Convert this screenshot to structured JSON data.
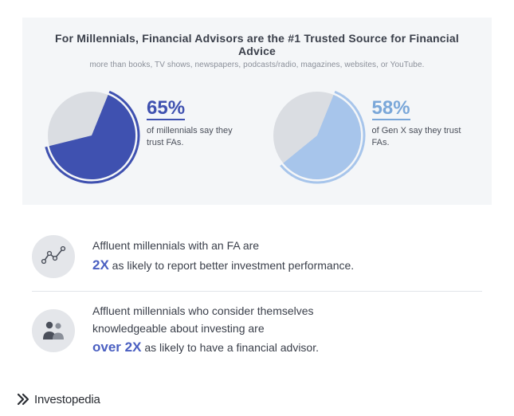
{
  "panel": {
    "title": "For Millennials, Financial Advisors are the #1 Trusted Source for Financial Advice",
    "subtitle": "more than books, TV shows, newspapers, podcasts/radio, magazines, websites, or YouTube.",
    "background_color": "#f4f6f8",
    "title_color": "#3a3f4a",
    "subtitle_color": "#8a8f99",
    "title_fontsize": 14,
    "subtitle_fontsize": 10
  },
  "pies": [
    {
      "percent": 65,
      "percent_label": "65%",
      "desc": "of millennials say they trust FAs.",
      "slice_color": "#3f51b0",
      "remainder_color": "#dadde2",
      "stroke_color": "#3f51b0",
      "pct_text_color": "#3f51b0",
      "start_angle_deg": 22
    },
    {
      "percent": 58,
      "percent_label": "58%",
      "desc": "of Gen X say they trust FAs.",
      "slice_color": "#a7c5eb",
      "remainder_color": "#dadde2",
      "stroke_color": "#a7c5eb",
      "pct_text_color": "#7aa7d9",
      "start_angle_deg": 22
    }
  ],
  "stats": [
    {
      "icon": "chart-line",
      "line1": "Affluent millennials with an FA are",
      "emphasis": "2X",
      "line2_after": " as likely to report better investment performance."
    },
    {
      "icon": "people",
      "line1": "Affluent millennials who consider themselves",
      "line2_before": "knowledgeable about investing are",
      "emphasis": "over 2X",
      "line3_after": " as likely to have a financial advisor."
    }
  ],
  "stat_style": {
    "text_color": "#3a3f4a",
    "emphasis_color": "#4a5fc1",
    "icon_bg": "#e4e6ea",
    "icon_fg": "#4a4f5a",
    "divider_color": "#e2e5e9",
    "fontsize": 14,
    "emphasis_fontsize": 17
  },
  "brand": {
    "name": "Investopedia",
    "color": "#2a2d33"
  }
}
